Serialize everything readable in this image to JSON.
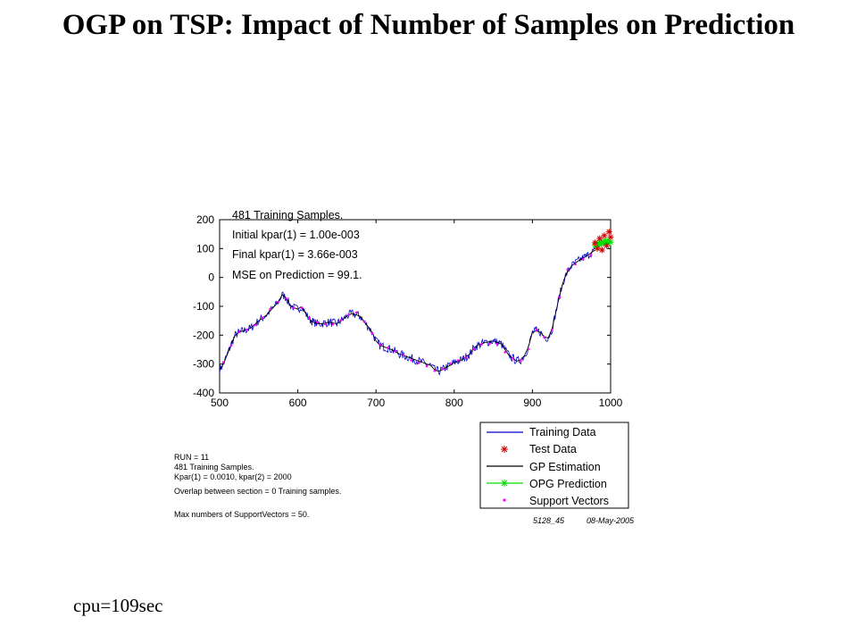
{
  "slide": {
    "title": "OGP on TSP: Impact of Number of Samples on Prediction",
    "footer": "cpu=109sec"
  },
  "chart_data": {
    "type": "line",
    "title": "",
    "xlabel": "",
    "ylabel": "",
    "xlim": [
      500,
      1000
    ],
    "ylim": [
      -400,
      200
    ],
    "x_ticks": [
      "500",
      "600",
      "700",
      "800",
      "900",
      "1000"
    ],
    "y_ticks": [
      "200",
      "100",
      "0",
      "-100",
      "-200",
      "-300",
      "-400"
    ],
    "grid": false,
    "annotations": [
      "481 Training Samples.",
      "Initial kpar(1) = 1.00e-003",
      "Final kpar(1) = 3.66e-003",
      "MSE on Prediction = 99.1."
    ],
    "legend_position": "below-right",
    "legend": [
      "Training Data",
      "Test Data",
      "GP Estimation",
      "OPG Prediction",
      "Support Vectors"
    ],
    "colors": {
      "training": "#0000cc",
      "test": "#cc0000",
      "gp": "#000000",
      "opg": "#00dd00",
      "sv": "#ff00ff"
    },
    "series": [
      {
        "name": "GP Estimation",
        "x": [
          500,
          505,
          510,
          515,
          520,
          525,
          530,
          540,
          550,
          560,
          565,
          570,
          575,
          580,
          585,
          590,
          595,
          600,
          605,
          610,
          615,
          620,
          625,
          630,
          640,
          650,
          660,
          665,
          670,
          675,
          680,
          685,
          690,
          695,
          700,
          705,
          710,
          715,
          720,
          730,
          740,
          750,
          760,
          770,
          775,
          780,
          785,
          790,
          795,
          800,
          810,
          820,
          825,
          830,
          840,
          850,
          860,
          865,
          870,
          875,
          880,
          885,
          890,
          895,
          900,
          905,
          910,
          915,
          920,
          925,
          930,
          935,
          940,
          945,
          950,
          960,
          970,
          980
        ],
        "y": [
          -320,
          -300,
          -265,
          -230,
          -200,
          -190,
          -185,
          -175,
          -150,
          -130,
          -115,
          -100,
          -85,
          -60,
          -70,
          -95,
          -105,
          -110,
          -100,
          -125,
          -145,
          -155,
          -160,
          -160,
          -155,
          -160,
          -140,
          -130,
          -125,
          -130,
          -135,
          -155,
          -170,
          -190,
          -220,
          -235,
          -240,
          -245,
          -250,
          -265,
          -275,
          -285,
          -295,
          -305,
          -320,
          -325,
          -320,
          -310,
          -305,
          -295,
          -285,
          -265,
          -245,
          -235,
          -225,
          -220,
          -230,
          -250,
          -270,
          -280,
          -290,
          -285,
          -270,
          -240,
          -190,
          -185,
          -190,
          -205,
          -210,
          -180,
          -120,
          -60,
          -10,
          20,
          40,
          60,
          75,
          95
        ]
      },
      {
        "name": "OPG Prediction",
        "x": [
          980,
          982,
          984,
          986,
          988,
          990,
          992,
          994,
          996,
          998,
          1000
        ],
        "y": [
          112,
          118,
          110,
          122,
          116,
          125,
          118,
          128,
          120,
          126,
          122
        ]
      },
      {
        "name": "Test Data",
        "x": [
          980,
          983,
          986,
          989,
          992,
          995,
          998,
          1000
        ],
        "y": [
          120,
          100,
          135,
          95,
          145,
          110,
          158,
          140
        ]
      }
    ]
  },
  "info_box": {
    "lines": [
      "RUN = 11",
      "481 Training Samples.",
      "Kpar(1) = 0.0010,  kpar(2) = 2000",
      "Overlap between section = 0 Training samples.",
      "Max numbers of SupportVectors = 50."
    ]
  },
  "stamp": {
    "id": "5128_45",
    "date": "08-May-2005"
  }
}
